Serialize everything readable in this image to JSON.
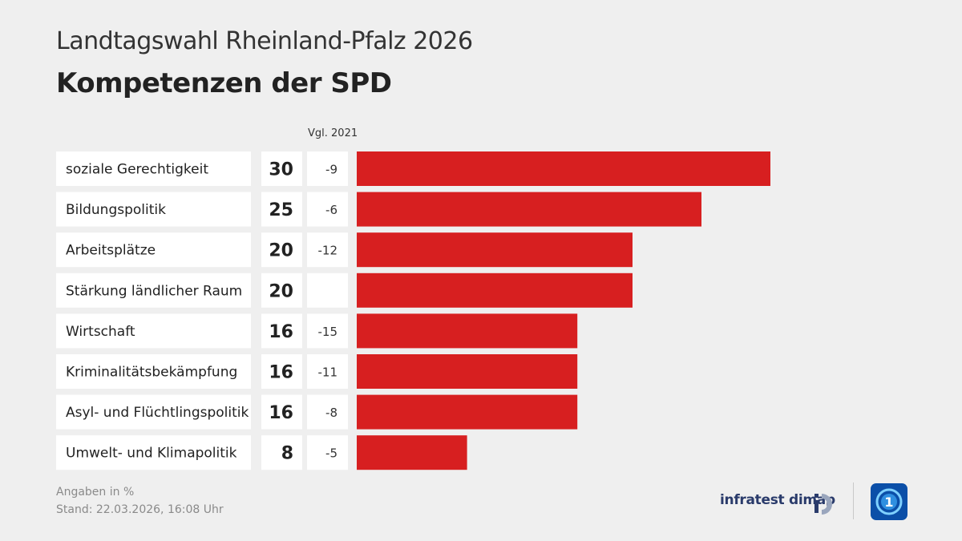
{
  "header": {
    "subtitle": "Landtagswahl Rheinland-Pfalz 2026",
    "title": "Kompetenzen der SPD",
    "comparison_label": "Vgl. 2021"
  },
  "chart_data": {
    "type": "bar",
    "orientation": "horizontal",
    "title": "Kompetenzen der SPD",
    "subtitle": "Landtagswahl Rheinland-Pfalz 2026",
    "categories": [
      "soziale Gerechtigkeit",
      "Bildungspolitik",
      "Arbeitsplätze",
      "Stärkung ländlicher Raum",
      "Wirtschaft",
      "Kriminalitätsbekämpfung",
      "Asyl- und Flüchtlingspolitik",
      "Umwelt- und Klimapolitik"
    ],
    "values": [
      30,
      25,
      20,
      20,
      16,
      16,
      16,
      8
    ],
    "change_vs_2021": [
      "-9",
      "-6",
      "-12",
      "",
      "-15",
      "-11",
      "-8",
      "-5"
    ],
    "xlim": [
      0,
      30
    ],
    "unit": "%",
    "bar_color": "#d71f20"
  },
  "footer": {
    "note": "Angaben in %",
    "stand": "Stand:  22.03.2026, 16:08 Uhr",
    "brand": "infratest dimap"
  },
  "icons": {
    "infratest": "infratest-dimap-logo-icon",
    "broadcaster": "das-erste-logo-icon"
  }
}
